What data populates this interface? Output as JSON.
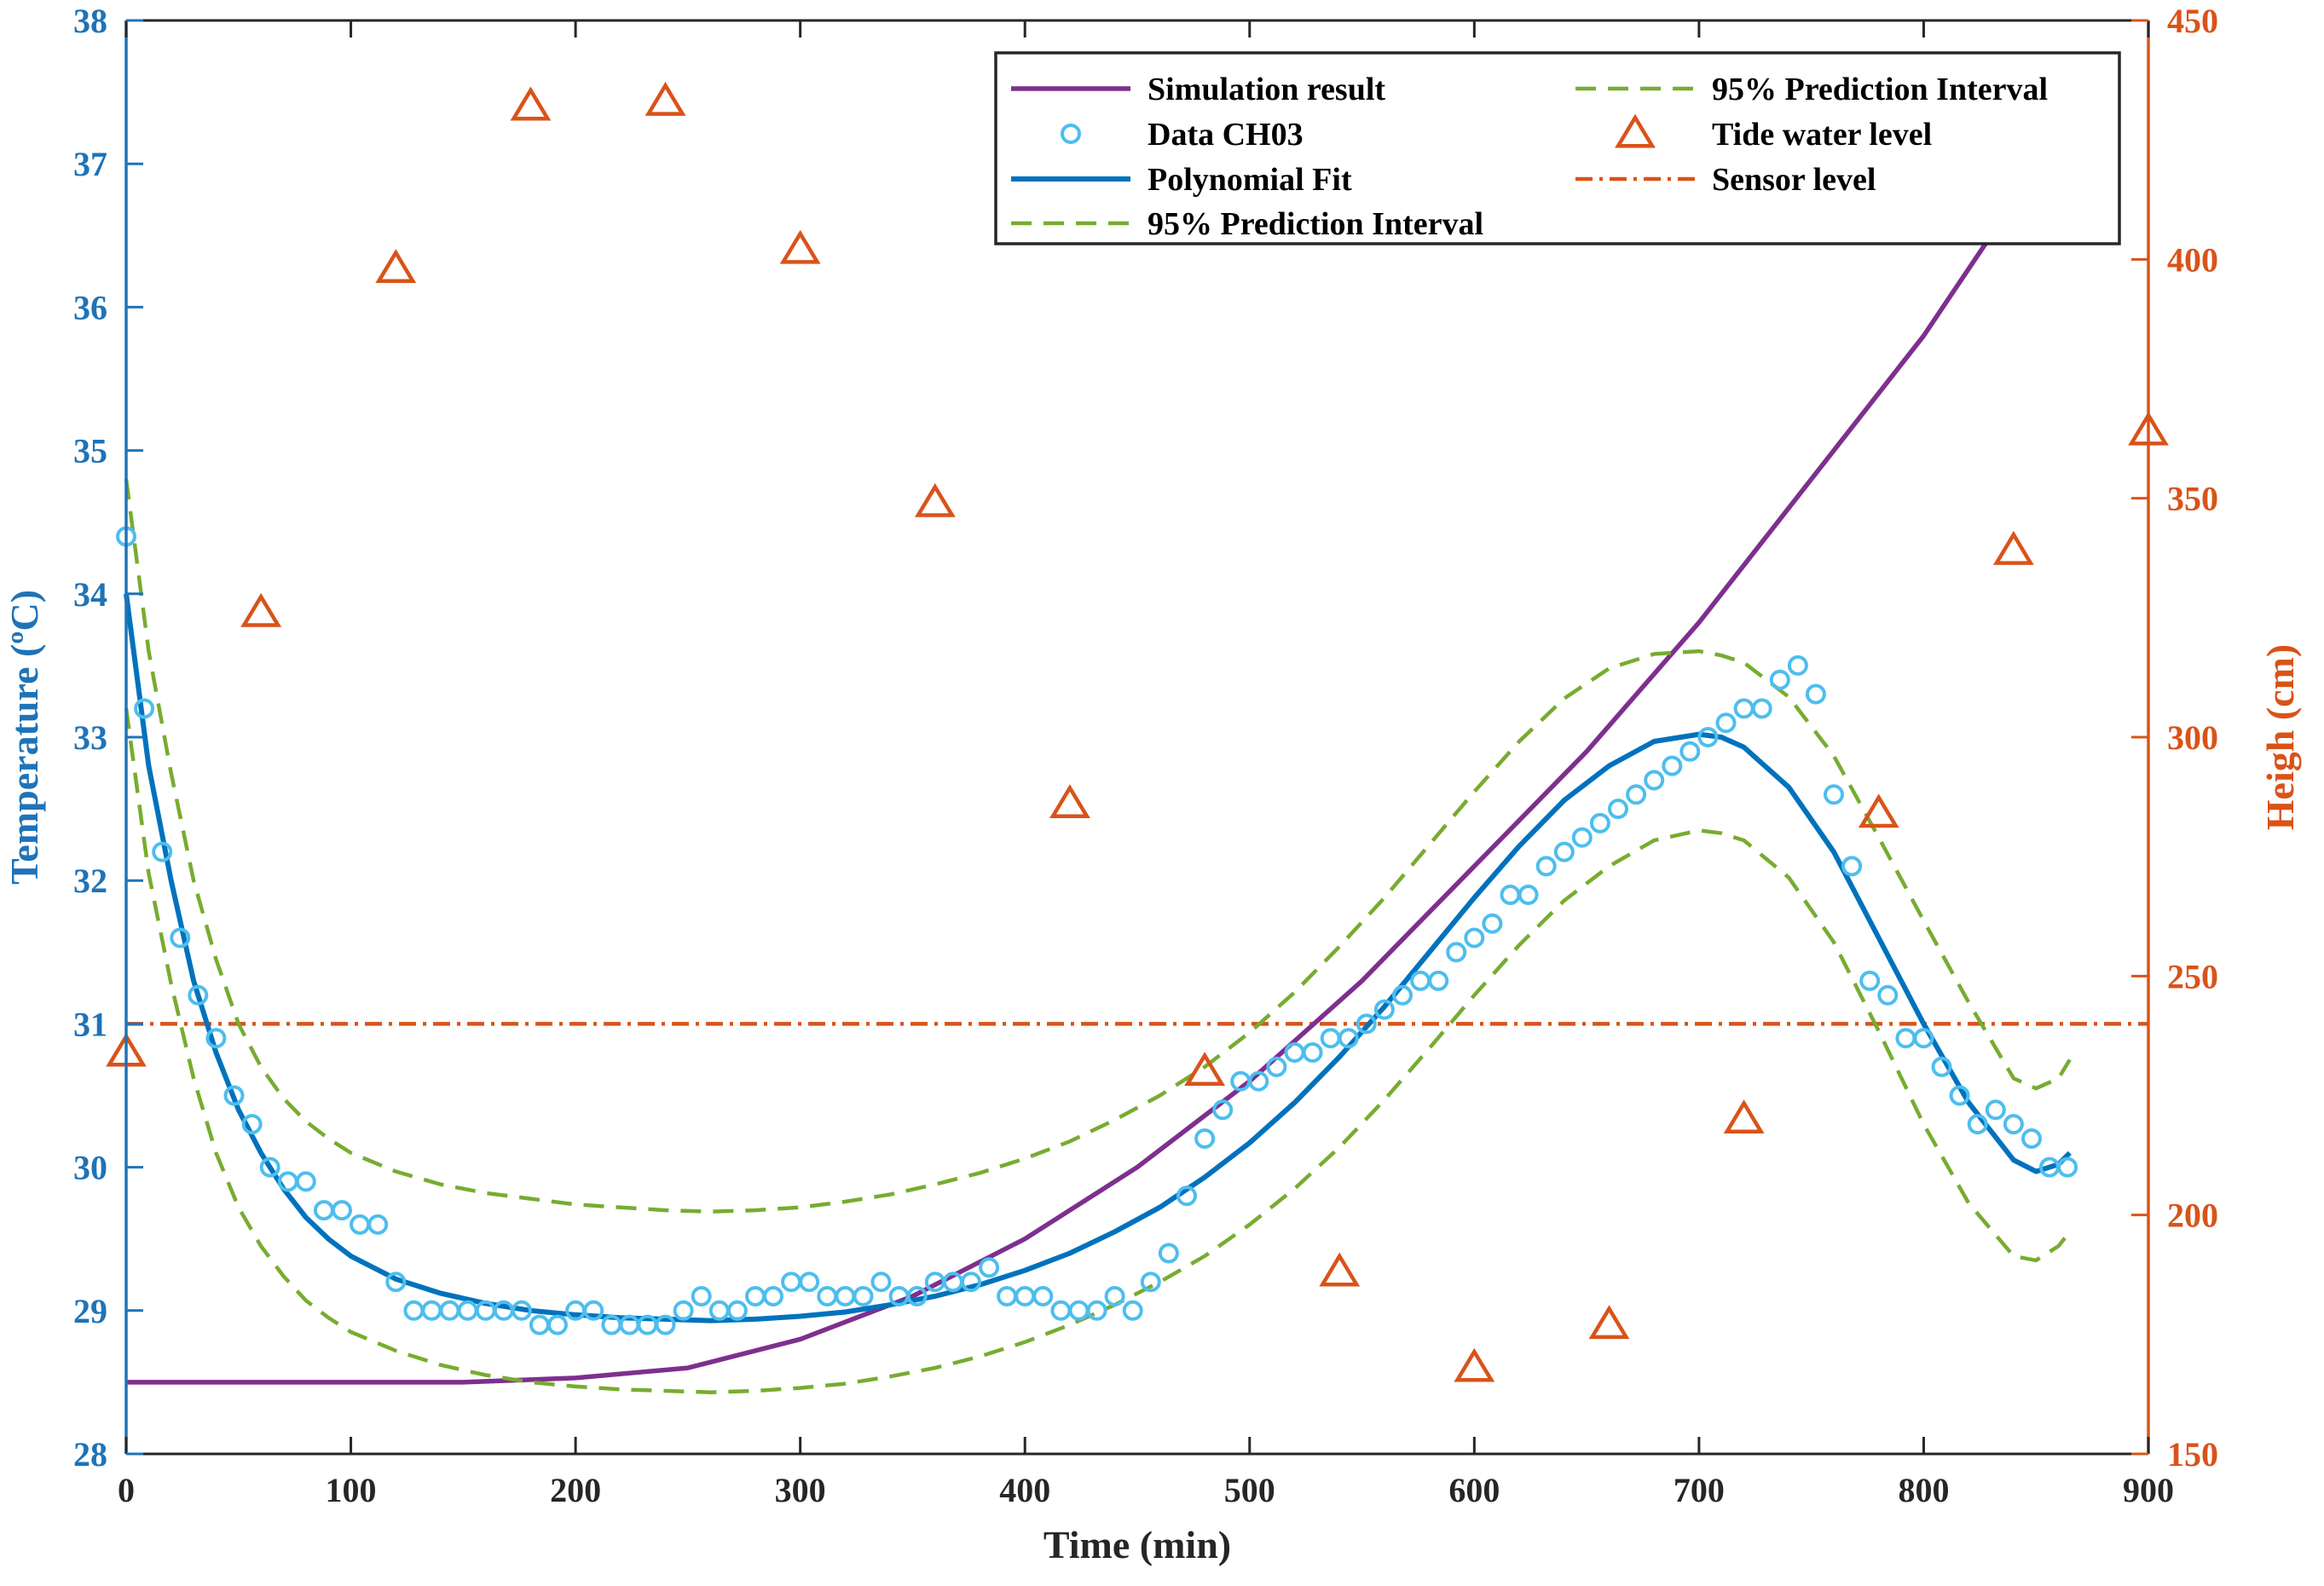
{
  "chart_data": {
    "type": "line",
    "xlabel": "Time (min)",
    "ylabel_left": "Temperature (ºC)",
    "ylabel_right": "Heigh (cm)",
    "xlim": [
      0,
      900
    ],
    "ylim_left": [
      28,
      38
    ],
    "ylim_right": [
      150,
      450
    ],
    "x_ticks": [
      "0",
      "100",
      "200",
      "300",
      "400",
      "500",
      "600",
      "700",
      "800",
      "900"
    ],
    "y_left_ticks": [
      "28",
      "29",
      "30",
      "31",
      "32",
      "33",
      "34",
      "35",
      "36",
      "37",
      "38"
    ],
    "y_right_ticks": [
      "150",
      "200",
      "250",
      "300",
      "350",
      "400",
      "450"
    ],
    "colors": {
      "left_axis": "#1f73b7",
      "right_axis": "#d95319",
      "simulation": "#7e2f8e",
      "data": "#4dbeee",
      "fit": "#0072bd",
      "interval": "#77ac30",
      "tide": "#d95319",
      "sensor": "#d95319"
    },
    "legend": {
      "simulation": "Simulation result",
      "data": "Data CH03",
      "fit": "Polynomial Fit",
      "interval_1": "95% Prediction Interval",
      "interval_2": "95% Prediction Interval",
      "tide": "Tide water level",
      "sensor": "Sensor level"
    },
    "series": [
      {
        "name": "Simulation result",
        "axis": "left",
        "x": [
          0,
          100,
          150,
          200,
          250,
          300,
          350,
          400,
          450,
          500,
          550,
          600,
          650,
          700,
          750,
          800,
          830
        ],
        "values": [
          28.5,
          28.5,
          28.5,
          28.53,
          28.6,
          28.8,
          29.1,
          29.5,
          30.0,
          30.6,
          31.3,
          32.1,
          32.9,
          33.8,
          34.8,
          35.8,
          36.5
        ]
      },
      {
        "name": "Data CH03",
        "axis": "left",
        "x": [
          0,
          8,
          16,
          24,
          32,
          40,
          48,
          56,
          64,
          72,
          80,
          88,
          96,
          104,
          112,
          120,
          128,
          136,
          144,
          152,
          160,
          168,
          176,
          184,
          192,
          200,
          208,
          216,
          224,
          232,
          240,
          248,
          256,
          264,
          272,
          280,
          288,
          296,
          304,
          312,
          320,
          328,
          336,
          344,
          352,
          360,
          368,
          376,
          384,
          392,
          400,
          408,
          416,
          424,
          432,
          440,
          448,
          456,
          464,
          472,
          480,
          488,
          496,
          504,
          512,
          520,
          528,
          536,
          544,
          552,
          560,
          568,
          576,
          584,
          592,
          600,
          608,
          616,
          624,
          632,
          640,
          648,
          656,
          664,
          672,
          680,
          688,
          696,
          704,
          712,
          720,
          728,
          736,
          744,
          752,
          760,
          768,
          776,
          784,
          792,
          800,
          808,
          816,
          824,
          832,
          840,
          848,
          856,
          864
        ],
        "values": [
          34.4,
          33.2,
          32.2,
          31.6,
          31.2,
          30.9,
          30.5,
          30.3,
          30.0,
          29.9,
          29.9,
          29.7,
          29.7,
          29.6,
          29.6,
          29.2,
          29.0,
          29.0,
          29.0,
          29.0,
          29.0,
          29.0,
          29.0,
          28.9,
          28.9,
          29.0,
          29.0,
          28.9,
          28.9,
          28.9,
          28.9,
          29.0,
          29.1,
          29.0,
          29.0,
          29.1,
          29.1,
          29.2,
          29.2,
          29.1,
          29.1,
          29.1,
          29.2,
          29.1,
          29.1,
          29.2,
          29.2,
          29.2,
          29.3,
          29.1,
          29.1,
          29.1,
          29.0,
          29.0,
          29.0,
          29.1,
          29.0,
          29.2,
          29.4,
          29.8,
          30.2,
          30.4,
          30.6,
          30.6,
          30.7,
          30.8,
          30.8,
          30.9,
          30.9,
          31.0,
          31.1,
          31.2,
          31.3,
          31.3,
          31.5,
          31.6,
          31.7,
          31.9,
          31.9,
          32.1,
          32.2,
          32.3,
          32.4,
          32.5,
          32.6,
          32.7,
          32.8,
          32.9,
          33.0,
          33.1,
          33.2,
          33.2,
          33.4,
          33.5,
          33.3,
          32.6,
          32.1,
          31.3,
          31.2,
          30.9,
          30.9,
          30.7,
          30.5,
          30.3,
          30.4,
          30.3,
          30.2,
          30.0,
          30.0
        ]
      },
      {
        "name": "Polynomial Fit",
        "axis": "left",
        "x": [
          0,
          10,
          20,
          30,
          40,
          50,
          60,
          70,
          80,
          90,
          100,
          120,
          140,
          160,
          180,
          200,
          220,
          240,
          260,
          280,
          300,
          320,
          340,
          360,
          380,
          400,
          420,
          440,
          460,
          480,
          500,
          520,
          540,
          560,
          580,
          600,
          620,
          640,
          660,
          680,
          700,
          710,
          720,
          740,
          760,
          780,
          800,
          820,
          840,
          850,
          860,
          865
        ],
        "values": [
          34.0,
          32.8,
          32.0,
          31.3,
          30.8,
          30.4,
          30.1,
          29.85,
          29.65,
          29.5,
          29.38,
          29.22,
          29.12,
          29.05,
          29.0,
          28.97,
          28.95,
          28.94,
          28.93,
          28.94,
          28.96,
          28.99,
          29.04,
          29.1,
          29.18,
          29.28,
          29.4,
          29.55,
          29.72,
          29.93,
          30.17,
          30.45,
          30.77,
          31.12,
          31.5,
          31.88,
          32.24,
          32.56,
          32.8,
          32.97,
          33.02,
          33.0,
          32.93,
          32.65,
          32.2,
          31.6,
          31.0,
          30.45,
          30.05,
          29.97,
          30.02,
          30.1
        ]
      },
      {
        "name": "95% Prediction Interval (upper)",
        "axis": "left",
        "x": [
          0,
          10,
          20,
          30,
          40,
          50,
          60,
          70,
          80,
          90,
          100,
          120,
          140,
          160,
          180,
          200,
          220,
          240,
          260,
          280,
          300,
          320,
          340,
          360,
          380,
          400,
          420,
          440,
          460,
          480,
          500,
          520,
          540,
          560,
          580,
          600,
          620,
          640,
          660,
          680,
          700,
          710,
          720,
          740,
          760,
          780,
          800,
          820,
          840,
          850,
          860,
          865
        ],
        "values": [
          34.8,
          33.6,
          32.75,
          32.0,
          31.45,
          31.0,
          30.7,
          30.48,
          30.32,
          30.2,
          30.1,
          29.97,
          29.88,
          29.82,
          29.78,
          29.74,
          29.72,
          29.7,
          29.69,
          29.7,
          29.72,
          29.76,
          29.81,
          29.88,
          29.96,
          30.06,
          30.18,
          30.33,
          30.5,
          30.7,
          30.94,
          31.22,
          31.54,
          31.88,
          32.25,
          32.62,
          32.97,
          33.27,
          33.48,
          33.58,
          33.6,
          33.57,
          33.52,
          33.28,
          32.87,
          32.3,
          31.72,
          31.15,
          30.62,
          30.55,
          30.62,
          30.75
        ]
      },
      {
        "name": "95% Prediction Interval (lower)",
        "axis": "left",
        "x": [
          0,
          10,
          20,
          30,
          40,
          50,
          60,
          70,
          80,
          90,
          100,
          120,
          140,
          160,
          180,
          200,
          220,
          240,
          260,
          280,
          300,
          320,
          340,
          360,
          380,
          400,
          420,
          440,
          460,
          480,
          500,
          520,
          540,
          560,
          580,
          600,
          620,
          640,
          660,
          680,
          700,
          710,
          720,
          740,
          760,
          780,
          800,
          820,
          840,
          850,
          860,
          865
        ],
        "values": [
          33.2,
          32.05,
          31.28,
          30.62,
          30.1,
          29.72,
          29.45,
          29.24,
          29.07,
          28.95,
          28.85,
          28.72,
          28.62,
          28.55,
          28.5,
          28.47,
          28.45,
          28.44,
          28.43,
          28.44,
          28.46,
          28.49,
          28.54,
          28.6,
          28.68,
          28.78,
          28.9,
          29.04,
          29.2,
          29.38,
          29.6,
          29.85,
          30.14,
          30.47,
          30.83,
          31.2,
          31.55,
          31.86,
          32.1,
          32.28,
          32.35,
          32.33,
          32.28,
          32.02,
          31.57,
          30.95,
          30.3,
          29.75,
          29.38,
          29.35,
          29.45,
          29.55
        ]
      },
      {
        "name": "Tide water level",
        "axis": "right",
        "x": [
          0,
          60,
          120,
          180,
          240,
          300,
          360,
          420,
          480,
          540,
          600,
          660,
          720,
          780,
          840,
          900
        ],
        "values": [
          234,
          326,
          398,
          432,
          433,
          402,
          349,
          286,
          230,
          188,
          168,
          177,
          220,
          284,
          339,
          364
        ]
      },
      {
        "name": "Sensor level",
        "axis": "left",
        "x": [
          0,
          900
        ],
        "values": [
          31.0,
          31.0
        ]
      }
    ]
  }
}
